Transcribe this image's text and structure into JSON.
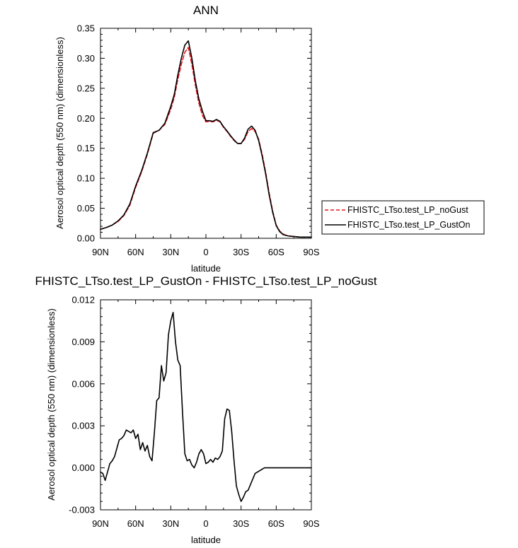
{
  "chart_data": [
    {
      "type": "line",
      "title": "ANN",
      "xlabel": "latitude",
      "ylabel": "Aerosol optical depth (550 nm) (dimensionless)",
      "xlim": [
        90,
        -90
      ],
      "ylim": [
        0,
        0.35
      ],
      "xticks": [
        90,
        60,
        30,
        0,
        -30,
        -60,
        -90
      ],
      "xtick_labels": [
        "90N",
        "60N",
        "30N",
        "0",
        "30S",
        "60S",
        "90S"
      ],
      "yticks": [
        0,
        0.05,
        0.1,
        0.15,
        0.2,
        0.25,
        0.3,
        0.35
      ],
      "ytick_labels": [
        "0.00",
        "0.05",
        "0.10",
        "0.15",
        "0.20",
        "0.25",
        "0.30",
        "0.35"
      ],
      "grid": false,
      "legend_position": "right",
      "series": [
        {
          "name": "FHISTC_LTso.test_LP_noGust",
          "color": "#e8141b",
          "dash": "dashed",
          "x": [
            90,
            85,
            80,
            75,
            70,
            65,
            60,
            55,
            50,
            45,
            40,
            35,
            30,
            27,
            24,
            21,
            18,
            15,
            12,
            9,
            6,
            3,
            0,
            -3,
            -6,
            -9,
            -12,
            -15,
            -18,
            -21,
            -24,
            -27,
            -30,
            -33,
            -36,
            -39,
            -42,
            -45,
            -48,
            -51,
            -54,
            -57,
            -60,
            -63,
            -66,
            -70,
            -75,
            -80,
            -85,
            -90
          ],
          "y": [
            0.015,
            0.018,
            0.022,
            0.028,
            0.038,
            0.055,
            0.085,
            0.11,
            0.14,
            0.175,
            0.18,
            0.19,
            0.215,
            0.235,
            0.265,
            0.29,
            0.31,
            0.318,
            0.29,
            0.255,
            0.225,
            0.205,
            0.194,
            0.195,
            0.194,
            0.197,
            0.194,
            0.185,
            0.178,
            0.17,
            0.163,
            0.158,
            0.158,
            0.165,
            0.178,
            0.183,
            0.178,
            0.165,
            0.14,
            0.11,
            0.075,
            0.045,
            0.022,
            0.012,
            0.007,
            0.004,
            0.003,
            0.002,
            0.002,
            0.002
          ]
        },
        {
          "name": "FHISTC_LTso.test_LP_GustOn",
          "color": "#000000",
          "dash": "solid",
          "x": [
            90,
            85,
            80,
            75,
            70,
            65,
            60,
            55,
            50,
            45,
            40,
            35,
            30,
            27,
            24,
            21,
            18,
            15,
            12,
            9,
            6,
            3,
            0,
            -3,
            -6,
            -9,
            -12,
            -15,
            -18,
            -21,
            -24,
            -27,
            -30,
            -33,
            -36,
            -39,
            -42,
            -45,
            -48,
            -51,
            -54,
            -57,
            -60,
            -63,
            -66,
            -70,
            -75,
            -80,
            -85,
            -90
          ],
          "y": [
            0.015,
            0.018,
            0.022,
            0.029,
            0.039,
            0.057,
            0.087,
            0.112,
            0.142,
            0.176,
            0.18,
            0.192,
            0.22,
            0.24,
            0.272,
            0.3,
            0.322,
            0.329,
            0.3,
            0.262,
            0.232,
            0.212,
            0.196,
            0.196,
            0.195,
            0.198,
            0.195,
            0.186,
            0.179,
            0.171,
            0.164,
            0.158,
            0.158,
            0.167,
            0.182,
            0.187,
            0.18,
            0.163,
            0.137,
            0.107,
            0.072,
            0.043,
            0.021,
            0.011,
            0.006,
            0.004,
            0.003,
            0.002,
            0.002,
            0.002
          ]
        }
      ]
    },
    {
      "type": "line",
      "title": "FHISTC_LTso.test_LP_GustOn - FHISTC_LTso.test_LP_noGust",
      "xlabel": "latitude",
      "ylabel": "Aerosol optical depth (550 nm) (dimensionless)",
      "xlim": [
        90,
        -90
      ],
      "ylim": [
        -0.003,
        0.012
      ],
      "xticks": [
        90,
        60,
        30,
        0,
        -30,
        -60,
        -90
      ],
      "xtick_labels": [
        "90N",
        "60N",
        "30N",
        "0",
        "30S",
        "60S",
        "90S"
      ],
      "yticks": [
        -0.003,
        0,
        0.003,
        0.006,
        0.009,
        0.012
      ],
      "ytick_labels": [
        "-0.003",
        "0.000",
        "0.003",
        "0.006",
        "0.009",
        "0.012"
      ],
      "grid": false,
      "series": [
        {
          "color": "#000000",
          "dash": "solid",
          "x": [
            90,
            88,
            86,
            84,
            82,
            80,
            78,
            76,
            74,
            72,
            70,
            68,
            66,
            64,
            62,
            60,
            58,
            56,
            54,
            52,
            50,
            48,
            46,
            44,
            42,
            40,
            38,
            36,
            34,
            32,
            30,
            28,
            26,
            24,
            22,
            20,
            18,
            16,
            14,
            12,
            10,
            8,
            6,
            4,
            2,
            0,
            -2,
            -4,
            -6,
            -8,
            -10,
            -12,
            -14,
            -16,
            -18,
            -20,
            -22,
            -24,
            -26,
            -28,
            -30,
            -32,
            -34,
            -36,
            -38,
            -40,
            -42,
            -44,
            -46,
            -48,
            -50,
            -52,
            -54,
            -56,
            -58,
            -60,
            -62,
            -64,
            -66,
            -68,
            -70,
            -75,
            -80,
            -85,
            -90
          ],
          "y": [
            -0.0003,
            -0.0004,
            -0.0009,
            -0.0003,
            0.0003,
            0.0005,
            0.0008,
            0.0014,
            0.002,
            0.0021,
            0.0023,
            0.0027,
            0.0026,
            0.0025,
            0.0027,
            0.0021,
            0.0024,
            0.0013,
            0.0018,
            0.0012,
            0.0016,
            0.0008,
            0.0005,
            0.0025,
            0.0048,
            0.005,
            0.0073,
            0.0062,
            0.0068,
            0.0095,
            0.0105,
            0.0111,
            0.009,
            0.0077,
            0.0073,
            0.004,
            0.001,
            0.0005,
            0.0006,
            0.0002,
            0.0,
            0.0004,
            0.001,
            0.0013,
            0.001,
            0.0003,
            0.0004,
            0.0006,
            0.0004,
            0.0007,
            0.0006,
            0.0008,
            0.0012,
            0.0035,
            0.0042,
            0.0041,
            0.0026,
            0.0005,
            -0.0013,
            -0.0019,
            -0.0024,
            -0.0021,
            -0.0017,
            -0.0016,
            -0.0012,
            -0.0008,
            -0.0004,
            -0.0003,
            -0.0002,
            -0.0001,
            0.0,
            0.0,
            0.0,
            0.0,
            0.0,
            0.0,
            0.0,
            0.0,
            0.0,
            0.0,
            0.0,
            0.0,
            0.0,
            0.0,
            0.0
          ]
        }
      ]
    }
  ]
}
